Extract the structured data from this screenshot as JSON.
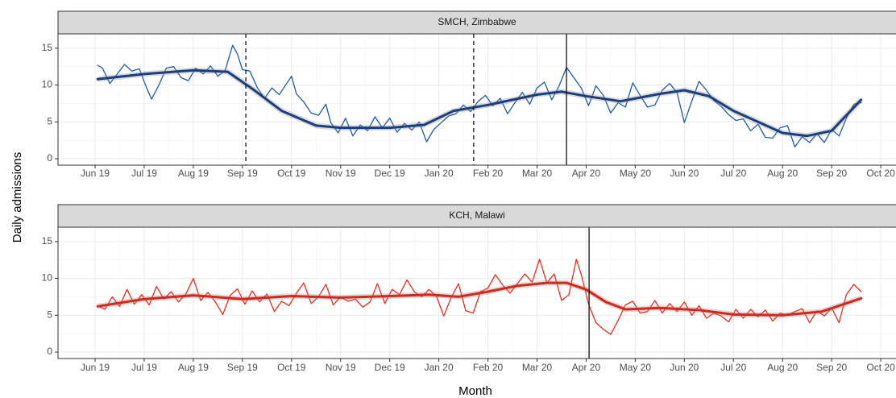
{
  "chart_data": [
    {
      "type": "line",
      "title": "SMCH, Zimbabwe",
      "ylabel": "Daily admissions",
      "xlim": [
        -0.755,
        16.31
      ],
      "ylim": [
        -0.87,
        16.95
      ],
      "yticks": [
        0,
        5,
        10,
        15
      ],
      "grid": true,
      "xticks": [
        {
          "value": 0,
          "label": "Jun 19"
        },
        {
          "value": 1,
          "label": "Jul 19"
        },
        {
          "value": 2,
          "label": "Aug 19"
        },
        {
          "value": 3,
          "label": "Sep 19"
        },
        {
          "value": 4,
          "label": "Oct 19"
        },
        {
          "value": 5,
          "label": "Nov 19"
        },
        {
          "value": 6,
          "label": "Dec 19"
        },
        {
          "value": 7,
          "label": "Jan 20"
        },
        {
          "value": 8,
          "label": "Feb 20"
        },
        {
          "value": 9,
          "label": "Mar 20"
        },
        {
          "value": 10,
          "label": "Apr 20"
        },
        {
          "value": 11,
          "label": "May 20"
        },
        {
          "value": 12,
          "label": "Jun 20"
        },
        {
          "value": 13,
          "label": "Jul 20"
        },
        {
          "value": 14,
          "label": "Aug 20"
        },
        {
          "value": 15,
          "label": "Sep 20"
        },
        {
          "value": 16,
          "label": "Oct 20"
        }
      ],
      "series": [
        {
          "color": "#1f5aa6",
          "width": 1.3,
          "x": [
            0.05,
            0.15,
            0.3,
            0.45,
            0.6,
            0.75,
            0.9,
            1.05,
            1.15,
            1.3,
            1.45,
            1.6,
            1.75,
            1.9,
            2.05,
            2.2,
            2.35,
            2.5,
            2.65,
            2.8,
            2.9,
            3.0,
            3.15,
            3.3,
            3.45,
            3.6,
            3.75,
            3.9,
            4.0,
            4.1,
            4.25,
            4.4,
            4.55,
            4.7,
            4.8,
            4.95,
            5.1,
            5.25,
            5.4,
            5.55,
            5.7,
            5.85,
            6.0,
            6.15,
            6.3,
            6.45,
            6.6,
            6.75,
            6.9,
            7.05,
            7.2,
            7.35,
            7.5,
            7.65,
            7.8,
            7.95,
            8.1,
            8.25,
            8.4,
            8.55,
            8.7,
            8.85,
            9.0,
            9.15,
            9.3,
            9.45,
            9.6,
            9.75,
            9.9,
            10.05,
            10.2,
            10.35,
            10.5,
            10.65,
            10.8,
            10.95,
            11.1,
            11.25,
            11.4,
            11.55,
            11.7,
            11.85,
            12.0,
            12.15,
            12.3,
            12.45,
            12.6,
            12.75,
            12.9,
            13.05,
            13.2,
            13.35,
            13.5,
            13.65,
            13.8,
            13.95,
            14.1,
            14.25,
            14.4,
            14.55,
            14.7,
            14.85,
            15.0,
            15.15,
            15.3,
            15.45,
            15.6
          ],
          "values": [
            12.7,
            12.3,
            10.2,
            11.5,
            12.8,
            11.9,
            12.2,
            9.6,
            8.1,
            10.0,
            12.3,
            12.5,
            11.0,
            10.6,
            12.3,
            11.5,
            12.6,
            11.2,
            12.0,
            15.4,
            14.2,
            12.1,
            11.9,
            9.7,
            8.2,
            9.6,
            8.7,
            10.2,
            11.2,
            8.8,
            7.7,
            6.2,
            5.9,
            7.4,
            4.9,
            3.5,
            5.5,
            3.1,
            4.6,
            3.8,
            5.7,
            4.2,
            5.5,
            3.6,
            4.8,
            3.9,
            5.0,
            2.3,
            4.0,
            4.9,
            5.8,
            6.1,
            7.3,
            6.4,
            7.8,
            8.6,
            7.2,
            8.2,
            6.1,
            7.6,
            9.0,
            7.4,
            9.6,
            10.4,
            8.0,
            9.9,
            12.4,
            11.0,
            9.6,
            7.2,
            9.9,
            8.6,
            6.2,
            7.6,
            7.0,
            10.3,
            8.6,
            7.0,
            7.3,
            9.3,
            10.2,
            9.0,
            4.9,
            7.8,
            10.5,
            9.3,
            7.9,
            7.1,
            6.0,
            5.2,
            5.4,
            3.8,
            4.7,
            2.9,
            2.8,
            4.2,
            4.5,
            1.6,
            3.0,
            2.2,
            3.4,
            2.2,
            4.0,
            3.1,
            5.5,
            7.4,
            7.6
          ]
        },
        {
          "color": "#1b3f7c",
          "width": 3,
          "x": [
            0.05,
            1,
            2,
            2.7,
            3.2,
            3.8,
            4.5,
            5,
            6,
            6.7,
            7.3,
            8,
            8.5,
            9,
            9.5,
            10,
            10.7,
            11.5,
            12,
            12.5,
            13,
            13.5,
            14,
            14.5,
            15,
            15.6
          ],
          "values": [
            10.8,
            11.5,
            12,
            11.8,
            9.5,
            6.5,
            4.5,
            4.2,
            4.2,
            4.6,
            6.5,
            7.3,
            8,
            8.7,
            9.1,
            8.5,
            7.8,
            8.8,
            9.3,
            8.5,
            6.5,
            5,
            3.5,
            3.1,
            3.8,
            8.0
          ]
        }
      ],
      "vlines": [
        {
          "x": 3.07,
          "style": "dashed"
        },
        {
          "x": 7.71,
          "style": "dashed"
        },
        {
          "x": 9.6,
          "style": "solid"
        }
      ]
    },
    {
      "type": "line",
      "title": "KCH, Malawi",
      "xlabel": "Month",
      "xlim": [
        -0.755,
        16.31
      ],
      "ylim": [
        -0.87,
        16.95
      ],
      "yticks": [
        0,
        5,
        10,
        15
      ],
      "grid": true,
      "xticks": [
        {
          "value": 0,
          "label": "Jun 19"
        },
        {
          "value": 1,
          "label": "Jul 19"
        },
        {
          "value": 2,
          "label": "Aug 19"
        },
        {
          "value": 3,
          "label": "Sep 19"
        },
        {
          "value": 4,
          "label": "Oct 19"
        },
        {
          "value": 5,
          "label": "Nov 19"
        },
        {
          "value": 6,
          "label": "Dec 19"
        },
        {
          "value": 7,
          "label": "Jan 20"
        },
        {
          "value": 8,
          "label": "Feb 20"
        },
        {
          "value": 9,
          "label": "Mar 20"
        },
        {
          "value": 10,
          "label": "Apr 20"
        },
        {
          "value": 11,
          "label": "May 20"
        },
        {
          "value": 12,
          "label": "Jun 20"
        },
        {
          "value": 13,
          "label": "Jul 20"
        },
        {
          "value": 14,
          "label": "Aug 20"
        },
        {
          "value": 15,
          "label": "Sep 20"
        },
        {
          "value": 16,
          "label": "Oct 20"
        }
      ],
      "series": [
        {
          "color": "#ee2a1b",
          "width": 1.3,
          "x": [
            0.05,
            0.2,
            0.35,
            0.5,
            0.65,
            0.8,
            0.95,
            1.1,
            1.25,
            1.4,
            1.55,
            1.7,
            1.85,
            2.0,
            2.15,
            2.3,
            2.45,
            2.6,
            2.75,
            2.9,
            3.05,
            3.2,
            3.35,
            3.5,
            3.65,
            3.8,
            3.95,
            4.1,
            4.25,
            4.4,
            4.55,
            4.7,
            4.85,
            5.0,
            5.15,
            5.3,
            5.45,
            5.6,
            5.75,
            5.9,
            6.05,
            6.2,
            6.35,
            6.5,
            6.65,
            6.8,
            6.95,
            7.1,
            7.25,
            7.4,
            7.55,
            7.7,
            7.85,
            8.0,
            8.15,
            8.3,
            8.45,
            8.6,
            8.75,
            8.9,
            9.05,
            9.2,
            9.35,
            9.5,
            9.65,
            9.8,
            9.9,
            10.05,
            10.2,
            10.35,
            10.5,
            10.65,
            10.8,
            10.95,
            11.1,
            11.25,
            11.4,
            11.55,
            11.7,
            11.85,
            12.0,
            12.15,
            12.3,
            12.45,
            12.6,
            12.75,
            12.9,
            13.05,
            13.2,
            13.35,
            13.5,
            13.65,
            13.8,
            13.95,
            14.1,
            14.25,
            14.4,
            14.55,
            14.7,
            14.85,
            15.0,
            15.15,
            15.3,
            15.45,
            15.6
          ],
          "values": [
            6.3,
            5.8,
            7.5,
            6.2,
            8.5,
            6.5,
            7.8,
            6.4,
            8.9,
            7.2,
            8.2,
            6.8,
            7.9,
            10.0,
            7.0,
            8.1,
            6.8,
            5.1,
            7.7,
            8.6,
            6.5,
            8.3,
            6.8,
            7.9,
            5.5,
            6.9,
            6.3,
            8.0,
            9.4,
            6.6,
            7.5,
            9.2,
            6.4,
            7.5,
            6.9,
            7.2,
            6.1,
            6.8,
            9.3,
            6.6,
            8.5,
            7.8,
            9.8,
            8.2,
            7.5,
            8.5,
            7.6,
            4.9,
            7.4,
            9.3,
            5.6,
            5.3,
            8.2,
            8.7,
            10.5,
            9.1,
            8.0,
            9.3,
            10.6,
            9.5,
            12.6,
            9.4,
            10.6,
            7.0,
            7.8,
            12.6,
            10.5,
            6.5,
            4.0,
            3.1,
            2.4,
            4.3,
            6.4,
            6.9,
            5.3,
            5.5,
            7.0,
            5.3,
            6.6,
            5.5,
            6.8,
            5.0,
            6.3,
            4.6,
            5.3,
            4.9,
            4.1,
            5.8,
            4.6,
            5.8,
            4.8,
            5.7,
            4.2,
            5.3,
            5.0,
            5.5,
            5.9,
            4.0,
            5.6,
            4.9,
            6.0,
            4.0,
            7.8,
            9.2,
            8.2
          ]
        },
        {
          "color": "#d9251a",
          "width": 3,
          "x": [
            0.05,
            1,
            2,
            3,
            4,
            5,
            6,
            6.8,
            7.4,
            8,
            8.6,
            9.2,
            9.6,
            10,
            10.4,
            10.8,
            11.5,
            12.3,
            13,
            14,
            14.8,
            15.6
          ],
          "values": [
            6.2,
            7.2,
            7.7,
            7.2,
            7.6,
            7.4,
            7.6,
            7.8,
            7.5,
            8.2,
            9.0,
            9.4,
            9.4,
            8.5,
            6.8,
            5.8,
            6.0,
            5.7,
            5.1,
            5.0,
            5.5,
            7.3
          ]
        }
      ],
      "vlines": [
        {
          "x": 10.06,
          "style": "solid"
        }
      ]
    }
  ]
}
